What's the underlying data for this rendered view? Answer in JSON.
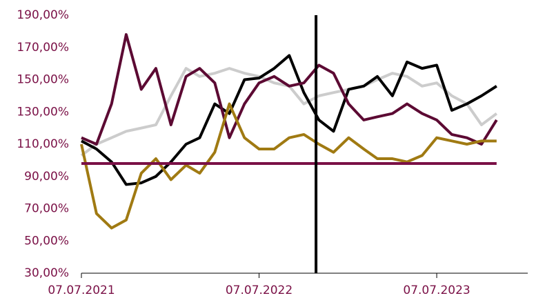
{
  "chart_data": {
    "type": "line",
    "x": [
      "2021-07-07",
      "2021-08-07",
      "2021-09-07",
      "2021-10-07",
      "2021-11-07",
      "2021-12-07",
      "2022-01-07",
      "2022-02-07",
      "2022-03-07",
      "2022-04-07",
      "2022-05-07",
      "2022-06-07",
      "2022-07-07",
      "2022-08-07",
      "2022-09-07",
      "2022-10-07",
      "2022-11-07",
      "2022-12-07",
      "2023-01-07",
      "2023-02-07",
      "2023-03-07",
      "2023-04-07",
      "2023-05-07",
      "2023-06-07",
      "2023-07-07",
      "2023-08-07",
      "2023-09-07",
      "2023-10-07",
      "2023-11-07"
    ],
    "series": [
      {
        "color": "#cccccc",
        "values": [
          103,
          110,
          114,
          118,
          120,
          122,
          140,
          157,
          152,
          154,
          157,
          154,
          152,
          148,
          146,
          135,
          140,
          142,
          144,
          146,
          150,
          154,
          152,
          146,
          148,
          140,
          135,
          122,
          129
        ]
      },
      {
        "color": "#000000",
        "values": [
          112,
          107,
          99,
          85,
          86,
          90,
          99,
          110,
          114,
          135,
          129,
          150,
          151,
          157,
          165,
          142,
          125,
          118,
          144,
          146,
          152,
          140,
          161,
          157,
          159,
          131,
          135,
          140,
          146
        ]
      },
      {
        "color": "#5c0a33",
        "values": [
          114,
          110,
          135,
          178,
          144,
          157,
          122,
          152,
          157,
          148,
          114,
          135,
          148,
          152,
          146,
          148,
          159,
          154,
          135,
          125,
          127,
          129,
          135,
          129,
          125,
          116,
          114,
          110,
          125
        ]
      },
      {
        "color": "#a07a12",
        "values": [
          110,
          67,
          58,
          63,
          92,
          101,
          88,
          97,
          92,
          105,
          135,
          114,
          107,
          107,
          114,
          116,
          110,
          105,
          114,
          107,
          101,
          101,
          99,
          103,
          114,
          112,
          110,
          112,
          112
        ]
      }
    ],
    "xlim": [
      "2021-07-07",
      "2024-01-10"
    ],
    "xticks": [
      {
        "value": "2021-07-07",
        "label": "07.07.2021"
      },
      {
        "value": "2022-07-07",
        "label": "07.07.2022"
      },
      {
        "value": "2023-07-07",
        "label": "07.07.2023"
      }
    ],
    "ylim": [
      30,
      190
    ],
    "yticks": [
      {
        "value": 30,
        "label": "30,00%"
      },
      {
        "value": 50,
        "label": "50,00%"
      },
      {
        "value": 70,
        "label": "70,00%"
      },
      {
        "value": 90,
        "label": "90,00%"
      },
      {
        "value": 110,
        "label": "110,00%"
      },
      {
        "value": 130,
        "label": "130,00%"
      },
      {
        "value": 150,
        "label": "150,00%"
      },
      {
        "value": 170,
        "label": "170,00%"
      },
      {
        "value": 190,
        "label": "190,00%"
      }
    ],
    "hline": {
      "value": 98,
      "color": "#7a1046"
    },
    "vline": {
      "value": "2022-11-01",
      "color": "#000000"
    },
    "label_color": "#7a1046"
  }
}
